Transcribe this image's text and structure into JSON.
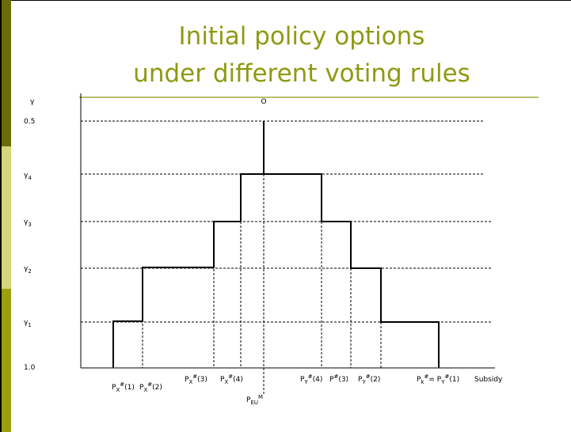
{
  "title": [
    "Initial policy options",
    "under different voting rules"
  ],
  "origin_label": "O",
  "y_labels": [
    [
      {
        "base": "γ"
      }
    ],
    [
      {
        "base": "0.5"
      }
    ],
    [
      {
        "base": "γ",
        "sub": "4"
      }
    ],
    [
      {
        "base": "γ",
        "sub": "3"
      }
    ],
    [
      {
        "base": "γ",
        "sub": "2"
      }
    ],
    [
      {
        "base": "γ",
        "sub": "1"
      }
    ],
    [
      {
        "base": "1.0"
      }
    ]
  ],
  "x_labels": [
    [
      {
        "base": "P",
        "sub": "X",
        "sup": "#",
        "after": "(1)"
      }
    ],
    [
      {
        "base": "P",
        "sub": "X",
        "sup": "#",
        "after": "(2)"
      }
    ],
    [
      {
        "base": "P",
        "sub": "X",
        "sup": "#",
        "after": "(3)"
      }
    ],
    [
      {
        "base": "P",
        "sub": "X",
        "sup": "#",
        "after": "(4)"
      }
    ],
    [
      {
        "base": "P",
        "sub": "Y",
        "sup": "#",
        "after": "(4)"
      }
    ],
    [
      {
        "base": "P",
        "sup": "#",
        "after": "(3)"
      }
    ],
    [
      {
        "base": "P",
        "sub": "Y",
        "sup": "#",
        "after": "(2)"
      }
    ],
    [
      {
        "base": "P",
        "sub": "k",
        "sup": "#",
        "after": "= "
      },
      {
        "base": "P",
        "sub": "Y",
        "sup": "#",
        "after": "(1)"
      }
    ],
    [
      {
        "base": "Subsidy"
      }
    ],
    [
      {
        "base": "P",
        "sub": "EU",
        "sup": "M"
      }
    ]
  ]
}
